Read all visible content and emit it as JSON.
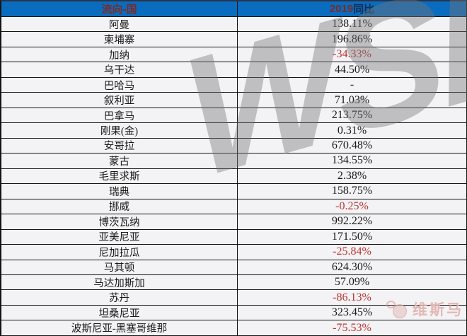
{
  "table": {
    "header": {
      "country_column": "流向-国",
      "value_year": "2019",
      "value_label": "同比"
    },
    "rows": [
      {
        "country": "阿曼",
        "value": "138.11%",
        "negative": false
      },
      {
        "country": "柬埔寨",
        "value": "196.86%",
        "negative": false
      },
      {
        "country": "加纳",
        "value": "-34.33%",
        "negative": true
      },
      {
        "country": "乌干达",
        "value": "44.50%",
        "negative": false
      },
      {
        "country": "巴哈马",
        "value": "-",
        "negative": false
      },
      {
        "country": "叙利亚",
        "value": "71.03%",
        "negative": false
      },
      {
        "country": "巴拿马",
        "value": "213.75%",
        "negative": false
      },
      {
        "country": "刚果(金)",
        "value": "0.31%",
        "negative": false
      },
      {
        "country": "安哥拉",
        "value": "670.48%",
        "negative": false
      },
      {
        "country": "蒙古",
        "value": "134.55%",
        "negative": false
      },
      {
        "country": "毛里求斯",
        "value": "2.38%",
        "negative": false
      },
      {
        "country": "瑞典",
        "value": "158.75%",
        "negative": false
      },
      {
        "country": "挪威",
        "value": "-0.25%",
        "negative": true
      },
      {
        "country": "博茨瓦纳",
        "value": "992.22%",
        "negative": false
      },
      {
        "country": "亚美尼亚",
        "value": "171.50%",
        "negative": false
      },
      {
        "country": "尼加拉瓜",
        "value": "-25.84%",
        "negative": true
      },
      {
        "country": "马其顿",
        "value": "624.30%",
        "negative": false
      },
      {
        "country": "马达加斯加",
        "value": "57.09%",
        "negative": false
      },
      {
        "country": "苏丹",
        "value": "-86.13%",
        "negative": true
      },
      {
        "country": "坦桑尼亚",
        "value": "323.45%",
        "negative": false
      },
      {
        "country": "波斯尼亚-黑塞哥维那",
        "value": "-75.53%",
        "negative": true
      }
    ]
  },
  "chart_data": {
    "type": "table",
    "title": "",
    "columns": [
      "流向-国",
      "2019同比"
    ],
    "categories": [
      "阿曼",
      "柬埔寨",
      "加纳",
      "乌干达",
      "巴哈马",
      "叙利亚",
      "巴拿马",
      "刚果(金)",
      "安哥拉",
      "蒙古",
      "毛里求斯",
      "瑞典",
      "挪威",
      "博茨瓦纳",
      "亚美尼亚",
      "尼加拉瓜",
      "马其顿",
      "马达加斯加",
      "苏丹",
      "坦桑尼亚",
      "波斯尼亚-黑塞哥维那"
    ],
    "values_pct": [
      138.11,
      196.86,
      -34.33,
      44.5,
      null,
      71.03,
      213.75,
      0.31,
      670.48,
      134.55,
      2.38,
      158.75,
      -0.25,
      992.22,
      171.5,
      -25.84,
      624.3,
      57.09,
      -86.13,
      323.45,
      -75.53
    ]
  },
  "watermarks": {
    "large_text": "WSM",
    "brand_text": "维斯马"
  },
  "colors": {
    "header_bg": "#0a6cbe",
    "header_country_text": "#7e2a26",
    "header_year_text": "#7e2a26",
    "header_label_text": "#122c4e",
    "row_bg": "#f3f2f4",
    "grid_line": "#141414",
    "positive_text": "#1a1a1a",
    "negative_text": "#bc3432",
    "watermark_gray": "#767676",
    "brand_pink": "#d69892"
  }
}
